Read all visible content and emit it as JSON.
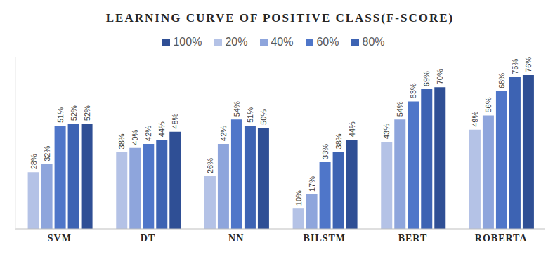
{
  "chart_data": {
    "type": "bar",
    "title": "LEARNING CURVE OF POSITIVE CLASS(F-SCORE)",
    "categories": [
      "SVM",
      "DT",
      "NN",
      "BILSTM",
      "BERT",
      "ROBERTA"
    ],
    "series": [
      {
        "name": "20%",
        "color": "#b4c2e6",
        "values": [
          28,
          38,
          26,
          10,
          43,
          49
        ],
        "value_labels": [
          "28%",
          "38%",
          "26%",
          "10%",
          "43%",
          "49%"
        ]
      },
      {
        "name": "40%",
        "color": "#8ea5dc",
        "values": [
          32,
          40,
          42,
          17,
          54,
          56
        ],
        "value_labels": [
          "32%",
          "40%",
          "42%",
          "17%",
          "54%",
          "56%"
        ]
      },
      {
        "name": "60%",
        "color": "#4f76c9",
        "values": [
          51,
          42,
          54,
          33,
          63,
          68
        ],
        "value_labels": [
          "51%",
          "42%",
          "54%",
          "33%",
          "63%",
          "68%"
        ]
      },
      {
        "name": "80%",
        "color": "#3d63b3",
        "values": [
          52,
          44,
          51,
          38,
          69,
          75
        ],
        "value_labels": [
          "52%",
          "44%",
          "51%",
          "38%",
          "69%",
          "75%"
        ]
      },
      {
        "name": "100%",
        "color": "#2f4f95",
        "values": [
          52,
          48,
          50,
          44,
          70,
          76
        ],
        "value_labels": [
          "52%",
          "48%",
          "50%",
          "44%",
          "70%",
          "76%"
        ]
      }
    ],
    "ylim": [
      0,
      85
    ],
    "grid": false,
    "legend": "top",
    "data_labels": true,
    "tick_labels": "x"
  }
}
